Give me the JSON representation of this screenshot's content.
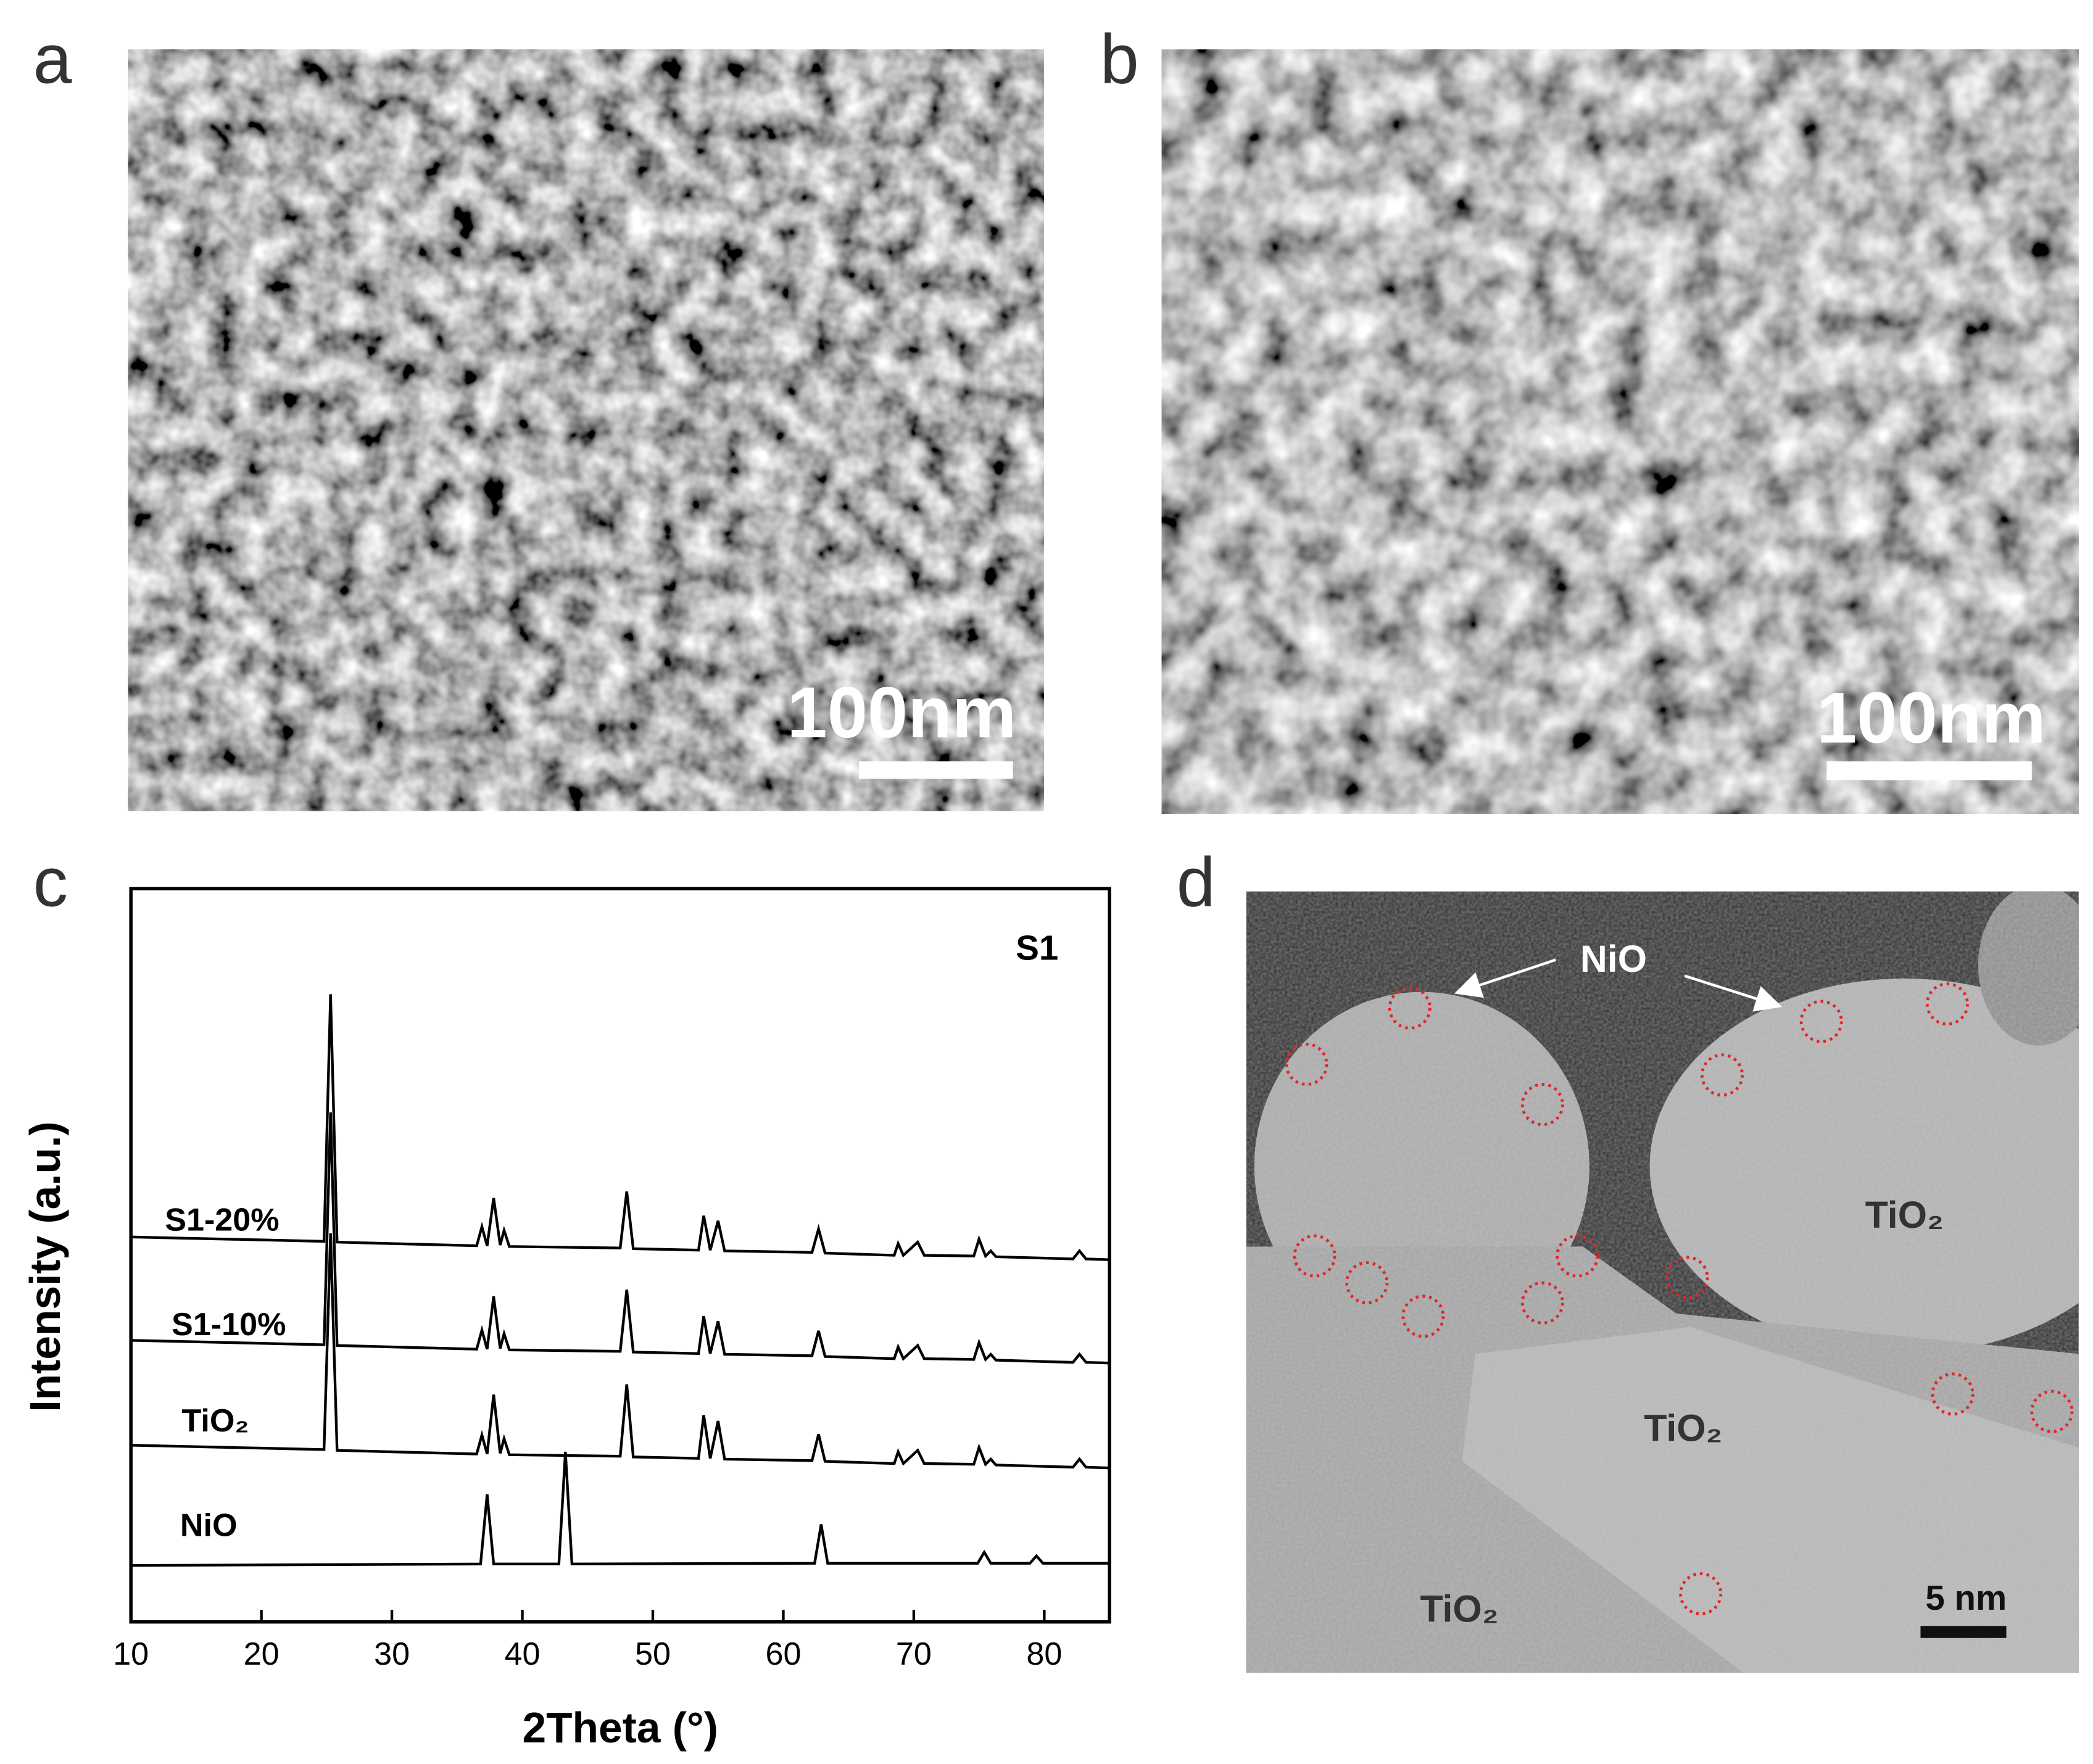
{
  "panel_a": {
    "label": "a",
    "scale_bar": "100nm"
  },
  "panel_b": {
    "label": "b",
    "scale_bar": "100nm"
  },
  "chart_data": {
    "type": "line",
    "panel_label": "c",
    "title": "S1",
    "x_label": "2Theta (°)",
    "y_label": "Intensity (a.u.)",
    "xlim": [
      10,
      85
    ],
    "xticks": [
      10,
      20,
      30,
      40,
      50,
      60,
      70,
      80
    ],
    "ylim": [
      0,
      100
    ],
    "series": [
      {
        "name": "S1-20%",
        "color": "#000000",
        "x": [
          10,
          20,
          24.8,
          25.3,
          25.8,
          30,
          36.5,
          36.9,
          37.3,
          37.8,
          38.3,
          38.6,
          39,
          47.5,
          48,
          48.5,
          53.5,
          53.9,
          54.4,
          55,
          55.5,
          62.2,
          62.7,
          63.2,
          68.5,
          68.8,
          69.2,
          70.3,
          70.8,
          74.6,
          75,
          75.5,
          75.9,
          76.3,
          82.2,
          82.7,
          83.2,
          85
        ],
        "values": [
          52.5,
          52.1,
          51.9,
          85.6,
          51.8,
          51.6,
          51.3,
          53.9,
          51.3,
          57.8,
          51.4,
          53.4,
          51.2,
          51,
          58.7,
          50.9,
          50.7,
          55.4,
          50.7,
          54.7,
          50.6,
          50.4,
          53.6,
          50.3,
          50,
          51.6,
          50,
          51.8,
          50,
          49.9,
          52.2,
          49.9,
          50.6,
          49.8,
          49.5,
          50.6,
          49.5,
          49.4
        ]
      },
      {
        "name": "S1-10%",
        "color": "#000000",
        "x": [
          10,
          20,
          24.8,
          25.3,
          25.8,
          30,
          36.5,
          36.9,
          37.3,
          37.8,
          38.3,
          38.6,
          39,
          47.5,
          48,
          48.5,
          53.5,
          53.9,
          54.4,
          55,
          55.5,
          62.2,
          62.7,
          63.2,
          68.5,
          68.8,
          69.2,
          70.3,
          70.8,
          74.6,
          75,
          75.5,
          75.9,
          76.3,
          82.2,
          82.7,
          83.2,
          85
        ],
        "values": [
          38.4,
          38,
          37.8,
          69.5,
          37.7,
          37.5,
          37.2,
          39.8,
          37.2,
          44.4,
          37.3,
          39.3,
          37.1,
          36.9,
          45.3,
          36.8,
          36.6,
          41.7,
          36.6,
          41,
          36.5,
          36.3,
          39.7,
          36.2,
          35.9,
          37.5,
          35.9,
          37.7,
          35.9,
          35.8,
          38.1,
          35.8,
          36.5,
          35.7,
          35.4,
          36.5,
          35.4,
          35.3
        ]
      },
      {
        "name": "TiO₂",
        "color": "#000000",
        "x": [
          10,
          20,
          24.8,
          25.3,
          25.8,
          30,
          36.5,
          36.9,
          37.3,
          37.8,
          38.3,
          38.6,
          39,
          47.5,
          48,
          48.5,
          53.5,
          53.9,
          54.4,
          55,
          55.5,
          62.2,
          62.7,
          63.2,
          68.5,
          68.8,
          69.2,
          70.3,
          70.8,
          74.6,
          75,
          75.5,
          75.9,
          76.3,
          82.2,
          82.7,
          83.2,
          85
        ],
        "values": [
          24.1,
          23.7,
          23.5,
          53,
          23.4,
          23.2,
          22.9,
          25.5,
          22.9,
          31,
          23,
          25,
          22.8,
          22.6,
          32.4,
          22.5,
          22.3,
          28.2,
          22.3,
          27.4,
          22.2,
          22,
          25.6,
          21.9,
          21.6,
          23.2,
          21.6,
          23.4,
          21.6,
          21.5,
          23.8,
          21.5,
          22.2,
          21.4,
          21.1,
          22.2,
          21.1,
          21
        ]
      },
      {
        "name": "NiO",
        "color": "#000000",
        "x": [
          10,
          36.8,
          37.3,
          37.8,
          42.8,
          43.3,
          43.8,
          62.4,
          62.9,
          63.4,
          74.9,
          75.4,
          75.9,
          78.9,
          79.4,
          79.9,
          85
        ],
        "values": [
          7.7,
          7.9,
          17.4,
          7.9,
          7.9,
          23.2,
          7.9,
          8,
          13.3,
          8,
          8,
          9.5,
          8,
          8,
          9,
          8,
          8
        ]
      }
    ]
  },
  "panel_d": {
    "label": "d",
    "annotations": [
      "NiO",
      "TiO₂",
      "TiO₂",
      "TiO₂"
    ],
    "scale_bar": "5 nm"
  }
}
